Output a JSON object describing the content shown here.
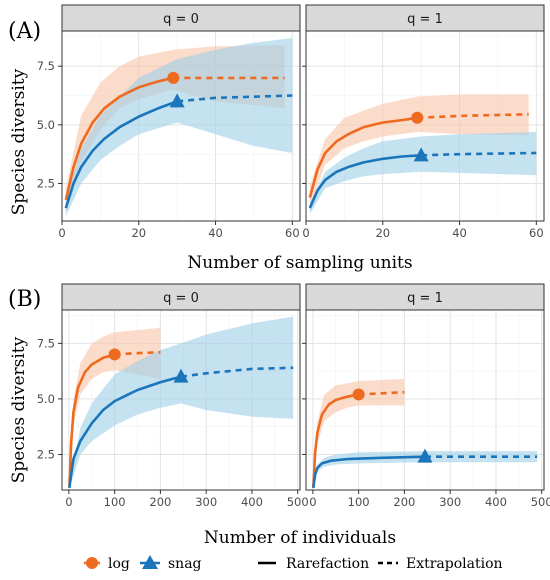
{
  "colors": {
    "log": "#ee6a1f",
    "snag": "#1b75bb",
    "log_band": "#f8c3a6",
    "snag_band": "#9fcfe8"
  },
  "figure": {
    "row_a_label": "(A)",
    "row_b_label": "(B)",
    "y_title": "Species diversity",
    "x_title_a": "Number of sampling units",
    "x_title_b": "Number of individuals"
  },
  "legend": {
    "log_label": "log",
    "snag_label": "snag",
    "rarefaction_label": "Rarefaction",
    "extrapolation_label": "Extrapolation"
  },
  "chart_data": [
    {
      "type": "line",
      "row": "A",
      "panel_title": "q = 0",
      "xlim": [
        0,
        62
      ],
      "ylim": [
        0.9,
        9.0
      ],
      "xticks": [
        0,
        20,
        40,
        60
      ],
      "yticks": [
        2.5,
        5.0,
        7.5
      ],
      "y_tick_labels": [
        "2.5",
        "5.0",
        "7.5"
      ],
      "grid": true,
      "series": [
        {
          "name": "log",
          "observed": {
            "x": 29,
            "y": 7.0
          },
          "xmax": 58,
          "rarefaction": [
            [
              1,
              1.8
            ],
            [
              3,
              3.2
            ],
            [
              5,
              4.2
            ],
            [
              8,
              5.1
            ],
            [
              11,
              5.7
            ],
            [
              15,
              6.2
            ],
            [
              20,
              6.6
            ],
            [
              25,
              6.85
            ],
            [
              29,
              7.0
            ]
          ],
          "extrapolation": [
            [
              29,
              7.0
            ],
            [
              58,
              7.0
            ]
          ],
          "band": [
            [
              1,
              1.3,
              2.3
            ],
            [
              5,
              3.4,
              5.4
            ],
            [
              10,
              4.8,
              6.8
            ],
            [
              15,
              5.7,
              7.5
            ],
            [
              20,
              6.1,
              7.9
            ],
            [
              29,
              6.5,
              8.2
            ],
            [
              40,
              6.0,
              8.35
            ],
            [
              58,
              5.7,
              8.4
            ]
          ]
        },
        {
          "name": "snag",
          "observed": {
            "x": 30,
            "y": 6.0
          },
          "xmax": 60,
          "rarefaction": [
            [
              1,
              1.45
            ],
            [
              3,
              2.5
            ],
            [
              5,
              3.2
            ],
            [
              8,
              3.9
            ],
            [
              11,
              4.4
            ],
            [
              15,
              4.9
            ],
            [
              20,
              5.35
            ],
            [
              25,
              5.7
            ],
            [
              30,
              6.0
            ]
          ],
          "extrapolation": [
            [
              30,
              6.0
            ],
            [
              40,
              6.15
            ],
            [
              60,
              6.25
            ]
          ],
          "band": [
            [
              1,
              1.1,
              1.8
            ],
            [
              5,
              2.5,
              4.0
            ],
            [
              10,
              3.5,
              5.4
            ],
            [
              15,
              4.1,
              6.2
            ],
            [
              20,
              4.6,
              7.0
            ],
            [
              30,
              5.1,
              7.8
            ],
            [
              40,
              4.6,
              8.2
            ],
            [
              50,
              4.1,
              8.5
            ],
            [
              60,
              3.8,
              8.7
            ]
          ]
        }
      ]
    },
    {
      "type": "line",
      "row": "A",
      "panel_title": "q = 1",
      "xlim": [
        0,
        62
      ],
      "ylim": [
        0.9,
        9.0
      ],
      "xticks": [
        0,
        20,
        40,
        60
      ],
      "yticks": [
        2.5,
        5.0,
        7.5
      ],
      "y_tick_labels": [],
      "grid": true,
      "series": [
        {
          "name": "log",
          "observed": {
            "x": 29,
            "y": 5.3
          },
          "xmax": 58,
          "rarefaction": [
            [
              1,
              1.9
            ],
            [
              3,
              3.1
            ],
            [
              5,
              3.8
            ],
            [
              8,
              4.3
            ],
            [
              11,
              4.6
            ],
            [
              15,
              4.9
            ],
            [
              20,
              5.1
            ],
            [
              25,
              5.2
            ],
            [
              29,
              5.3
            ]
          ],
          "extrapolation": [
            [
              29,
              5.3
            ],
            [
              40,
              5.38
            ],
            [
              58,
              5.45
            ]
          ],
          "band": [
            [
              1,
              1.5,
              2.4
            ],
            [
              5,
              3.3,
              4.4
            ],
            [
              10,
              4.0,
              5.3
            ],
            [
              15,
              4.3,
              5.6
            ],
            [
              20,
              4.5,
              5.9
            ],
            [
              29,
              4.7,
              6.2
            ],
            [
              40,
              4.6,
              6.3
            ],
            [
              58,
              4.55,
              6.3
            ]
          ]
        },
        {
          "name": "snag",
          "observed": {
            "x": 30,
            "y": 3.7
          },
          "xmax": 60,
          "rarefaction": [
            [
              1,
              1.45
            ],
            [
              3,
              2.2
            ],
            [
              5,
              2.65
            ],
            [
              8,
              3.0
            ],
            [
              11,
              3.2
            ],
            [
              15,
              3.4
            ],
            [
              20,
              3.55
            ],
            [
              25,
              3.65
            ],
            [
              30,
              3.7
            ]
          ],
          "extrapolation": [
            [
              30,
              3.7
            ],
            [
              40,
              3.75
            ],
            [
              60,
              3.8
            ]
          ],
          "band": [
            [
              1,
              1.2,
              1.7
            ],
            [
              5,
              2.3,
              3.0
            ],
            [
              10,
              2.6,
              3.6
            ],
            [
              15,
              2.8,
              4.0
            ],
            [
              20,
              2.9,
              4.3
            ],
            [
              30,
              3.0,
              4.5
            ],
            [
              40,
              2.95,
              4.6
            ],
            [
              60,
              2.85,
              4.7
            ]
          ]
        }
      ]
    },
    {
      "type": "line",
      "row": "B",
      "panel_title": "q = 0",
      "xlim": [
        -15,
        505
      ],
      "ylim": [
        0.9,
        9.0
      ],
      "xticks": [
        0,
        100,
        200,
        300,
        400,
        500
      ],
      "yticks": [
        2.5,
        5.0,
        7.5
      ],
      "y_tick_labels": [
        "2.5",
        "5.0",
        "7.5"
      ],
      "grid": true,
      "series": [
        {
          "name": "log",
          "observed": {
            "x": 100,
            "y": 7.0
          },
          "xmax": 200,
          "rarefaction": [
            [
              1,
              1.0
            ],
            [
              5,
              3.0
            ],
            [
              10,
              4.4
            ],
            [
              20,
              5.5
            ],
            [
              35,
              6.2
            ],
            [
              50,
              6.55
            ],
            [
              75,
              6.85
            ],
            [
              100,
              7.0
            ]
          ],
          "extrapolation": [
            [
              100,
              7.0
            ],
            [
              140,
              7.05
            ],
            [
              200,
              7.1
            ]
          ],
          "band": [
            [
              1,
              0.95,
              1.1
            ],
            [
              10,
              3.8,
              5.0
            ],
            [
              25,
              5.2,
              6.6
            ],
            [
              50,
              5.9,
              7.5
            ],
            [
              75,
              6.2,
              7.8
            ],
            [
              100,
              6.3,
              8.0
            ],
            [
              150,
              6.1,
              8.1
            ],
            [
              200,
              5.9,
              8.2
            ]
          ]
        },
        {
          "name": "snag",
          "observed": {
            "x": 245,
            "y": 6.0
          },
          "xmax": 490,
          "rarefaction": [
            [
              1,
              1.0
            ],
            [
              10,
              2.3
            ],
            [
              25,
              3.1
            ],
            [
              50,
              3.9
            ],
            [
              75,
              4.5
            ],
            [
              100,
              4.9
            ],
            [
              150,
              5.4
            ],
            [
              200,
              5.75
            ],
            [
              245,
              6.0
            ]
          ],
          "extrapolation": [
            [
              245,
              6.0
            ],
            [
              300,
              6.15
            ],
            [
              400,
              6.35
            ],
            [
              490,
              6.4
            ]
          ],
          "band": [
            [
              1,
              0.95,
              1.1
            ],
            [
              25,
              2.5,
              3.7
            ],
            [
              50,
              3.1,
              4.8
            ],
            [
              100,
              3.8,
              6.1
            ],
            [
              150,
              4.3,
              6.7
            ],
            [
              200,
              4.6,
              7.2
            ],
            [
              245,
              4.8,
              7.5
            ],
            [
              300,
              4.5,
              7.9
            ],
            [
              400,
              4.2,
              8.4
            ],
            [
              490,
              4.1,
              8.7
            ]
          ]
        }
      ]
    },
    {
      "type": "line",
      "row": "B",
      "panel_title": "q = 1",
      "xlim": [
        -15,
        505
      ],
      "ylim": [
        0.9,
        9.0
      ],
      "xticks": [
        0,
        100,
        200,
        300,
        400,
        500
      ],
      "yticks": [
        2.5,
        5.0,
        7.5
      ],
      "y_tick_labels": [],
      "grid": true,
      "series": [
        {
          "name": "log",
          "observed": {
            "x": 100,
            "y": 5.2
          },
          "xmax": 200,
          "rarefaction": [
            [
              1,
              1.0
            ],
            [
              5,
              2.6
            ],
            [
              10,
              3.5
            ],
            [
              20,
              4.3
            ],
            [
              35,
              4.75
            ],
            [
              50,
              4.95
            ],
            [
              75,
              5.1
            ],
            [
              100,
              5.2
            ]
          ],
          "extrapolation": [
            [
              100,
              5.2
            ],
            [
              150,
              5.25
            ],
            [
              200,
              5.3
            ]
          ],
          "band": [
            [
              1,
              0.95,
              1.1
            ],
            [
              10,
              3.0,
              4.0
            ],
            [
              25,
              4.0,
              5.2
            ],
            [
              50,
              4.4,
              5.6
            ],
            [
              75,
              4.6,
              5.7
            ],
            [
              100,
              4.7,
              5.8
            ],
            [
              150,
              4.7,
              5.85
            ],
            [
              200,
              4.7,
              5.9
            ]
          ]
        },
        {
          "name": "snag",
          "observed": {
            "x": 245,
            "y": 2.4
          },
          "xmax": 490,
          "rarefaction": [
            [
              1,
              1.0
            ],
            [
              5,
              1.6
            ],
            [
              10,
              1.9
            ],
            [
              20,
              2.1
            ],
            [
              40,
              2.22
            ],
            [
              80,
              2.3
            ],
            [
              150,
              2.35
            ],
            [
              245,
              2.4
            ]
          ],
          "extrapolation": [
            [
              245,
              2.4
            ],
            [
              350,
              2.4
            ],
            [
              490,
              2.4
            ]
          ],
          "band": [
            [
              1,
              0.95,
              1.1
            ],
            [
              10,
              1.75,
              2.05
            ],
            [
              25,
              1.95,
              2.35
            ],
            [
              50,
              2.05,
              2.5
            ],
            [
              100,
              2.1,
              2.6
            ],
            [
              245,
              2.15,
              2.65
            ],
            [
              350,
              2.15,
              2.65
            ],
            [
              490,
              2.15,
              2.65
            ]
          ]
        }
      ]
    }
  ]
}
